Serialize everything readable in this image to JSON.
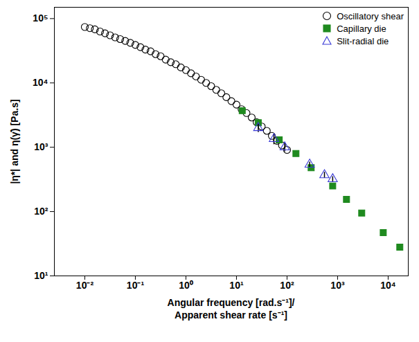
{
  "chart_data": {
    "type": "scatter",
    "y_label": "|η*| and η(γ̇) [Pa.s]",
    "x_label": [
      "Angular frequency [rad.s⁻¹]/",
      "Apparent shear rate [s⁻¹]"
    ],
    "log": true,
    "grid": false,
    "legend": "top-right",
    "xlim": [
      0.0025,
      25000
    ],
    "ylim": [
      10,
      150000
    ],
    "xticks": [
      {
        "value": 0.01,
        "label": "10⁻²"
      },
      {
        "value": 0.1,
        "label": "10⁻¹"
      },
      {
        "value": 1,
        "label": "10⁰"
      },
      {
        "value": 10,
        "label": "10¹"
      },
      {
        "value": 100,
        "label": "10²"
      },
      {
        "value": 1000,
        "label": "10³"
      },
      {
        "value": 10000,
        "label": "10⁴"
      }
    ],
    "yticks": [
      {
        "value": 10,
        "label": "10¹"
      },
      {
        "value": 100,
        "label": "10²"
      },
      {
        "value": 1000,
        "label": "10³"
      },
      {
        "value": 10000,
        "label": "10⁴"
      },
      {
        "value": 100000,
        "label": "10⁵"
      }
    ],
    "series": [
      {
        "name": "Oscillatory shear",
        "color": "#000000",
        "marker": "circle-open",
        "x": [
          0.01,
          0.0126,
          0.0158,
          0.02,
          0.0251,
          0.0316,
          0.0398,
          0.0501,
          0.0631,
          0.0794,
          0.1,
          0.126,
          0.158,
          0.2,
          0.251,
          0.316,
          0.398,
          0.501,
          0.631,
          0.794,
          1,
          1.26,
          1.58,
          2,
          2.51,
          3.16,
          3.98,
          5.01,
          6.31,
          7.94,
          10,
          12.6,
          15.8,
          20,
          25.1,
          31.6,
          39.8,
          50.1,
          63.1,
          79.4,
          100
        ],
        "values": [
          74000,
          71000,
          68000,
          63000,
          59000,
          55000,
          51000,
          48000,
          45000,
          42000,
          39000,
          36000,
          33000,
          31000,
          28000,
          26000,
          23000,
          21000,
          19500,
          17400,
          15800,
          14100,
          12600,
          11200,
          10000,
          8900,
          7800,
          6900,
          6000,
          5200,
          4600,
          3900,
          3400,
          2900,
          2450,
          2100,
          1800,
          1500,
          1260,
          1070,
          910
        ]
      },
      {
        "name": "Capillary die",
        "color": "#1f8a1f",
        "marker": "square",
        "x": [
          13,
          27,
          70,
          150,
          300,
          800,
          1500,
          3000,
          8000,
          17000
        ],
        "values": [
          3700,
          2400,
          1300,
          800,
          480,
          250,
          155,
          95,
          47,
          28
        ]
      },
      {
        "name": "Slit-radial die",
        "color": "#3a3ad6",
        "marker": "triangle-open",
        "x": [
          27,
          55,
          90,
          280,
          550,
          800
        ],
        "values": [
          2000,
          1350,
          1000,
          540,
          370,
          320
        ],
        "errors": [
          300,
          250,
          150,
          50,
          40,
          30
        ]
      }
    ]
  }
}
